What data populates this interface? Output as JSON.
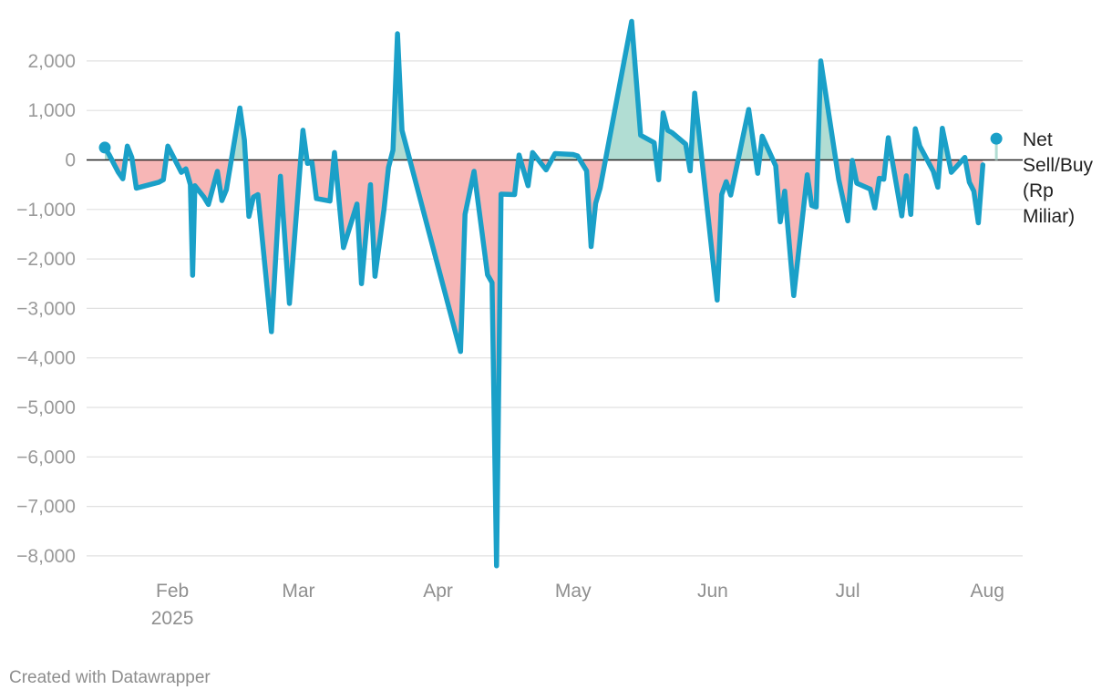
{
  "chart_data": {
    "type": "area",
    "title": "",
    "xlabel": "",
    "ylabel": "",
    "ylim": [
      -8300,
      2900
    ],
    "y_ticks": [
      2000,
      1000,
      0,
      -1000,
      -2000,
      -3000,
      -4000,
      -5000,
      -6000,
      -7000,
      -8000
    ],
    "y_tick_labels": [
      "2,000",
      "1,000",
      "0",
      "−1,000",
      "−2,000",
      "−3,000",
      "−4,000",
      "−5,000",
      "−6,000",
      "−7,000",
      "−8,000"
    ],
    "x_ticks": [
      {
        "day": 31,
        "label": "Feb",
        "sublabel": "2025"
      },
      {
        "day": 59,
        "label": "Mar",
        "sublabel": ""
      },
      {
        "day": 90,
        "label": "Apr",
        "sublabel": ""
      },
      {
        "day": 120,
        "label": "May",
        "sublabel": ""
      },
      {
        "day": 151,
        "label": "Jun",
        "sublabel": ""
      },
      {
        "day": 181,
        "label": "Jul",
        "sublabel": ""
      },
      {
        "day": 212,
        "label": "Aug",
        "sublabel": ""
      }
    ],
    "x_unit": "day of year 2025 (0 = Jan 1)",
    "series_label_lines": [
      "Net",
      "Sell/Buy",
      "(Rp",
      "Miliar)"
    ],
    "colors": {
      "line": "#1aa0c8",
      "positive": "#b1ddd3",
      "negative": "#f7b6b6",
      "grid": "#e0e0e0",
      "zero": "#222222"
    },
    "series": [
      {
        "name": "Net Sell/Buy (Rp Miliar)",
        "points": [
          [
            16,
            250
          ],
          [
            17,
            100
          ],
          [
            19,
            -250
          ],
          [
            20,
            -380
          ],
          [
            21,
            280
          ],
          [
            22,
            50
          ],
          [
            23,
            -570
          ],
          [
            28,
            -450
          ],
          [
            29,
            -400
          ],
          [
            30,
            280
          ],
          [
            33,
            -250
          ],
          [
            34,
            -180
          ],
          [
            35,
            -500
          ],
          [
            35.5,
            -2330
          ],
          [
            36,
            -520
          ],
          [
            38,
            -750
          ],
          [
            39,
            -900
          ],
          [
            41,
            -230
          ],
          [
            42,
            -820
          ],
          [
            43,
            -600
          ],
          [
            46,
            1050
          ],
          [
            47,
            400
          ],
          [
            48,
            -1140
          ],
          [
            49,
            -750
          ],
          [
            50,
            -700
          ],
          [
            53,
            -3470
          ],
          [
            55,
            -330
          ],
          [
            57,
            -2900
          ],
          [
            60,
            600
          ],
          [
            61,
            -70
          ],
          [
            62,
            -50
          ],
          [
            63,
            -780
          ],
          [
            66,
            -830
          ],
          [
            67,
            150
          ],
          [
            69,
            -1770
          ],
          [
            72,
            -890
          ],
          [
            73,
            -2500
          ],
          [
            75,
            -500
          ],
          [
            76,
            -2350
          ],
          [
            78,
            -1000
          ],
          [
            79,
            -150
          ],
          [
            80,
            200
          ],
          [
            81,
            2550
          ],
          [
            82,
            600
          ],
          [
            95,
            -3870
          ],
          [
            96,
            -1100
          ],
          [
            98,
            -230
          ],
          [
            101,
            -2320
          ],
          [
            102,
            -2480
          ],
          [
            103,
            -8200
          ],
          [
            104,
            -690
          ],
          [
            107,
            -700
          ],
          [
            108,
            100
          ],
          [
            110,
            -520
          ],
          [
            111,
            150
          ],
          [
            114,
            -200
          ],
          [
            116,
            130
          ],
          [
            120,
            110
          ],
          [
            121,
            80
          ],
          [
            123,
            -220
          ],
          [
            124,
            -1750
          ],
          [
            125,
            -880
          ],
          [
            126,
            -570
          ],
          [
            133,
            2800
          ],
          [
            135,
            500
          ],
          [
            138,
            350
          ],
          [
            139,
            -400
          ],
          [
            140,
            950
          ],
          [
            141,
            600
          ],
          [
            142,
            550
          ],
          [
            145,
            320
          ],
          [
            146,
            -220
          ],
          [
            147,
            1350
          ],
          [
            152,
            -2830
          ],
          [
            153,
            -700
          ],
          [
            154,
            -440
          ],
          [
            155,
            -710
          ],
          [
            159,
            1020
          ],
          [
            161,
            -270
          ],
          [
            162,
            480
          ],
          [
            165,
            -120
          ],
          [
            166,
            -1250
          ],
          [
            167,
            -630
          ],
          [
            169,
            -2740
          ],
          [
            172,
            -300
          ],
          [
            173,
            -920
          ],
          [
            174,
            -950
          ],
          [
            175,
            2000
          ],
          [
            179,
            -400
          ],
          [
            181,
            -1230
          ],
          [
            182,
            -10
          ],
          [
            183,
            -470
          ],
          [
            186,
            -590
          ],
          [
            187,
            -970
          ],
          [
            188,
            -370
          ],
          [
            189,
            -390
          ],
          [
            190,
            450
          ],
          [
            193,
            -1130
          ],
          [
            194,
            -320
          ],
          [
            195,
            -1100
          ],
          [
            196,
            630
          ],
          [
            197,
            280
          ],
          [
            200,
            -230
          ],
          [
            201,
            -550
          ],
          [
            202,
            640
          ],
          [
            204,
            -250
          ],
          [
            207,
            50
          ],
          [
            208,
            -450
          ],
          [
            209,
            -630
          ],
          [
            210,
            -1270
          ],
          [
            211,
            -100
          ]
        ],
        "latest_marker": {
          "day": 214,
          "value": 430
        }
      }
    ]
  },
  "footer": {
    "credit": "Created with Datawrapper"
  }
}
